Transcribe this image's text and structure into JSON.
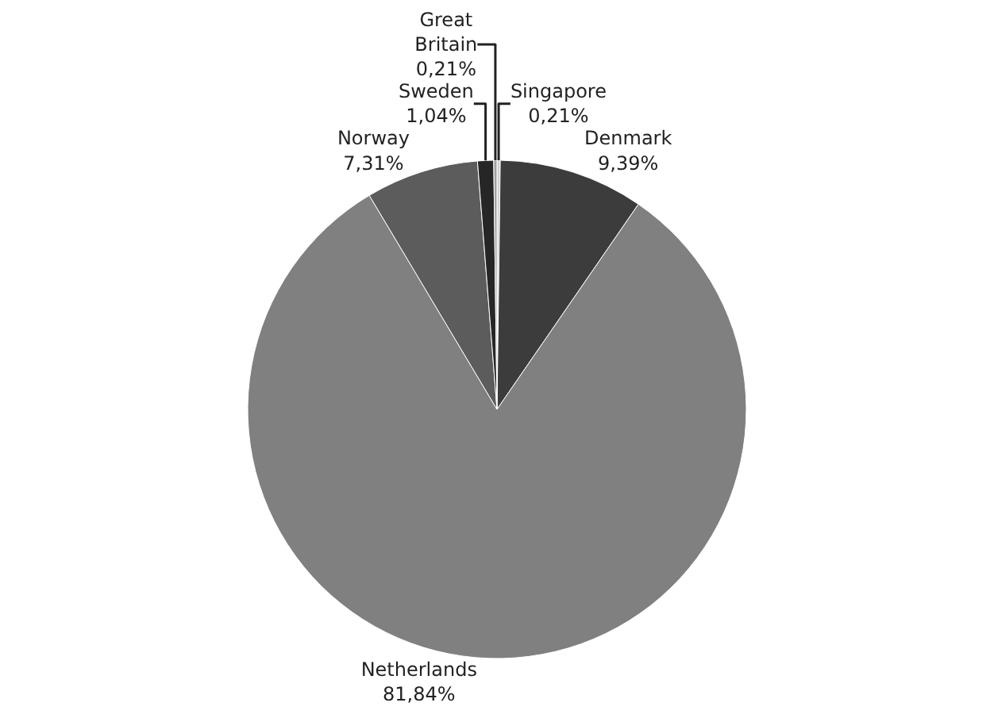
{
  "chart_data": {
    "type": "pie",
    "categories": [
      "Singapore",
      "Denmark",
      "Netherlands",
      "Norway",
      "Sweden",
      "Great Britain"
    ],
    "values": [
      0.21,
      9.39,
      81.84,
      7.31,
      1.04,
      0.21
    ],
    "value_labels": [
      "0,21%",
      "9,39%",
      "81,84%",
      "7,31%",
      "1,04%",
      "0,21%"
    ],
    "colors": [
      "#d0d0d0",
      "#3c3c3c",
      "#808080",
      "#5c5c5c",
      "#262626",
      "#a0a0a0"
    ],
    "legend": false
  }
}
